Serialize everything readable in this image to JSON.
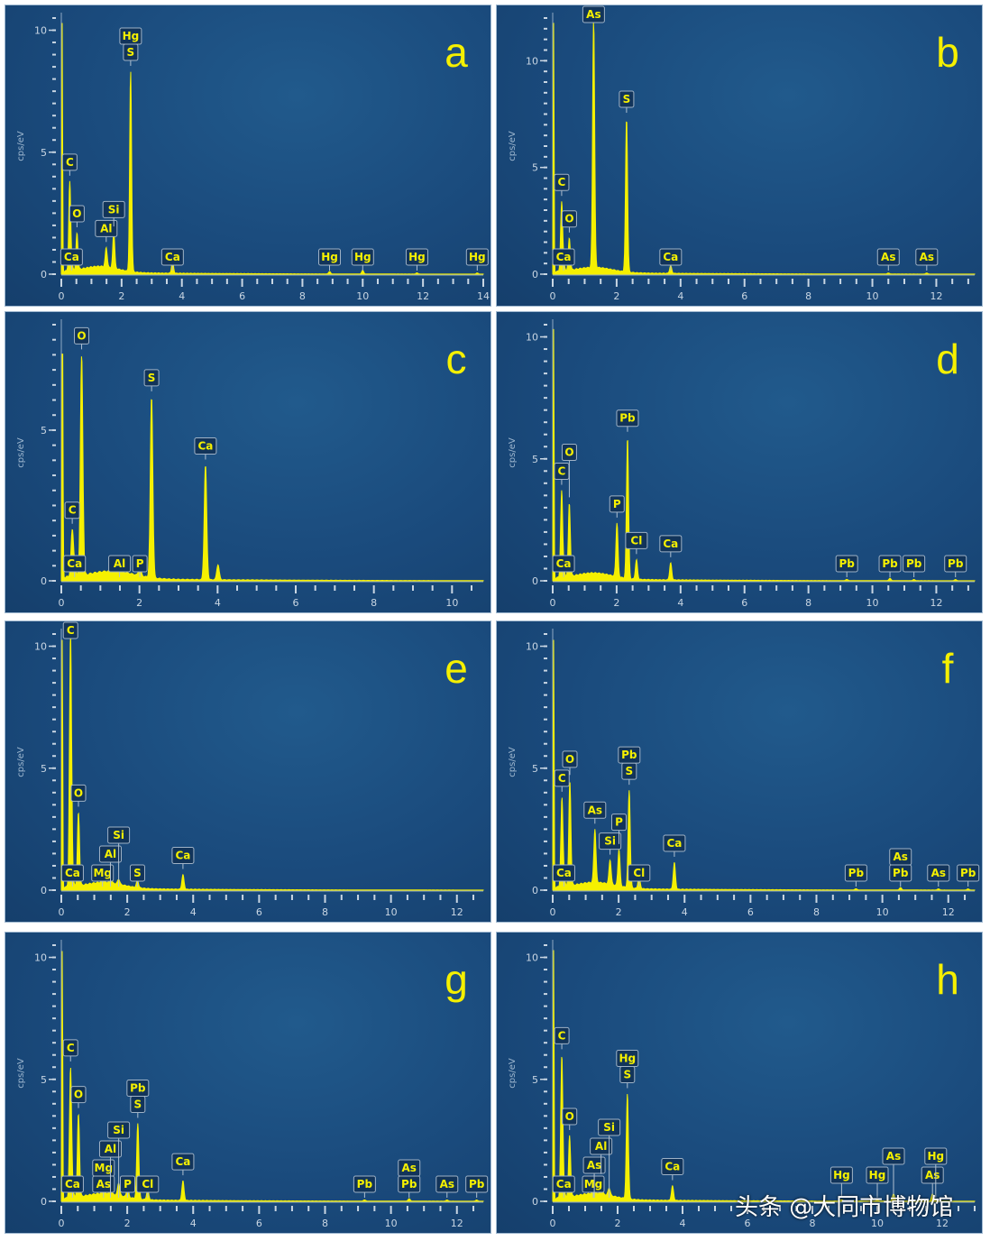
{
  "figure": {
    "watermark": "头条 @大同市博物馆"
  },
  "colors": {
    "spectrum": "#f5f000",
    "background": "#1b4b7d",
    "axis": "#c9d6e3",
    "label_text": "#f5f000"
  },
  "chart_data": [
    {
      "id": "a",
      "type": "area",
      "title": "a",
      "ylabel": "cps/eV",
      "xlabel": "",
      "xlim": [
        0,
        14
      ],
      "ylim": [
        0,
        10.5
      ],
      "xticks": [
        0,
        2,
        4,
        6,
        8,
        10,
        12,
        14
      ],
      "yticks": [
        0,
        5,
        10
      ],
      "peaks": [
        {
          "x": 0.28,
          "y": 3.6,
          "labels": [
            "C"
          ]
        },
        {
          "x": 0.52,
          "y": 1.5,
          "labels": [
            "O"
          ]
        },
        {
          "x": 0.34,
          "y": 0.3,
          "labels": [
            "Ca"
          ]
        },
        {
          "x": 1.49,
          "y": 0.8,
          "labels": [
            "Al"
          ]
        },
        {
          "x": 1.74,
          "y": 1.5,
          "labels": [
            "Si"
          ]
        },
        {
          "x": 2.3,
          "y": 8.2,
          "labels": [
            "Hg",
            "S"
          ]
        },
        {
          "x": 3.69,
          "y": 0.5,
          "labels": [
            "Ca"
          ]
        },
        {
          "x": 8.9,
          "y": 0.1,
          "labels": [
            "Hg"
          ]
        },
        {
          "x": 10.0,
          "y": 0.15,
          "labels": [
            "Hg"
          ]
        },
        {
          "x": 11.8,
          "y": 0.05,
          "labels": [
            "Hg"
          ]
        },
        {
          "x": 13.8,
          "y": 0.05,
          "labels": [
            "Hg"
          ]
        }
      ]
    },
    {
      "id": "b",
      "type": "area",
      "title": "b",
      "ylabel": "cps/eV",
      "xlabel": "",
      "xlim": [
        0,
        13.2
      ],
      "ylim": [
        0,
        12
      ],
      "xticks": [
        0,
        2,
        4,
        6,
        8,
        10,
        12
      ],
      "yticks": [
        0,
        5,
        10
      ],
      "peaks": [
        {
          "x": 0.28,
          "y": 3.2,
          "labels": [
            "C"
          ]
        },
        {
          "x": 0.52,
          "y": 1.5,
          "labels": [
            "O"
          ]
        },
        {
          "x": 0.34,
          "y": 0.3,
          "labels": [
            "Ca"
          ]
        },
        {
          "x": 1.28,
          "y": 11.6,
          "labels": [
            "As"
          ]
        },
        {
          "x": 2.31,
          "y": 7.2,
          "labels": [
            "S"
          ]
        },
        {
          "x": 3.69,
          "y": 0.35,
          "labels": [
            "Ca"
          ]
        },
        {
          "x": 10.5,
          "y": 0.05,
          "labels": [
            "As"
          ]
        },
        {
          "x": 11.7,
          "y": 0.05,
          "labels": [
            "As"
          ]
        }
      ]
    },
    {
      "id": "c",
      "type": "area",
      "title": "c",
      "ylabel": "cps/eV",
      "xlabel": "",
      "xlim": [
        0,
        10.8
      ],
      "ylim": [
        0,
        8.5
      ],
      "xticks": [
        0,
        2,
        4,
        6,
        8,
        10
      ],
      "yticks": [
        0,
        5
      ],
      "peaks": [
        {
          "x": 0.28,
          "y": 1.5,
          "labels": [
            "C"
          ]
        },
        {
          "x": 0.34,
          "y": 0.3,
          "labels": [
            "Ca"
          ]
        },
        {
          "x": 0.52,
          "y": 7.3,
          "labels": [
            "O"
          ]
        },
        {
          "x": 1.49,
          "y": 0.3,
          "labels": [
            "Al"
          ]
        },
        {
          "x": 2.01,
          "y": 0.3,
          "labels": [
            "P"
          ]
        },
        {
          "x": 2.31,
          "y": 6.0,
          "labels": [
            "S"
          ]
        },
        {
          "x": 3.69,
          "y": 3.8,
          "labels": [
            "Ca"
          ]
        },
        {
          "x": 4.01,
          "y": 0.5,
          "labels": []
        }
      ]
    },
    {
      "id": "d",
      "type": "area",
      "title": "d",
      "ylabel": "cps/eV",
      "xlabel": "",
      "xlim": [
        0,
        13.2
      ],
      "ylim": [
        0,
        10.5
      ],
      "xticks": [
        0,
        2,
        4,
        6,
        8,
        10,
        12
      ],
      "yticks": [
        0,
        5,
        10
      ],
      "peaks": [
        {
          "x": 0.28,
          "y": 3.5,
          "labels": [
            "C"
          ]
        },
        {
          "x": 0.34,
          "y": 0.3,
          "labels": [
            "Ca"
          ]
        },
        {
          "x": 0.52,
          "y": 3.0,
          "labels": [
            "O"
          ]
        },
        {
          "x": 2.01,
          "y": 2.2,
          "labels": [
            "P"
          ]
        },
        {
          "x": 2.34,
          "y": 5.8,
          "labels": [
            "Pb"
          ]
        },
        {
          "x": 2.62,
          "y": 0.8,
          "labels": [
            "Cl"
          ]
        },
        {
          "x": 3.69,
          "y": 0.7,
          "labels": [
            "Ca"
          ]
        },
        {
          "x": 9.2,
          "y": 0.05,
          "labels": [
            "Pb"
          ]
        },
        {
          "x": 10.55,
          "y": 0.1,
          "labels": [
            "Pb"
          ]
        },
        {
          "x": 11.3,
          "y": 0.05,
          "labels": [
            "Pb"
          ]
        },
        {
          "x": 12.6,
          "y": 0.05,
          "labels": [
            "Pb"
          ]
        }
      ]
    },
    {
      "id": "e",
      "type": "area",
      "title": "e",
      "ylabel": "cps/eV",
      "xlabel": "",
      "xlim": [
        0,
        12.8
      ],
      "ylim": [
        0,
        10.5
      ],
      "xticks": [
        0,
        2,
        4,
        6,
        8,
        10,
        12
      ],
      "yticks": [
        0,
        5,
        10
      ],
      "peaks": [
        {
          "x": 0.28,
          "y": 10.4,
          "labels": [
            "C"
          ]
        },
        {
          "x": 0.34,
          "y": 0.3,
          "labels": [
            "Ca"
          ]
        },
        {
          "x": 0.52,
          "y": 3.0,
          "labels": [
            "O"
          ]
        },
        {
          "x": 1.25,
          "y": 0.2,
          "labels": [
            "Mg"
          ]
        },
        {
          "x": 1.49,
          "y": 0.3,
          "labels": [
            "Al"
          ]
        },
        {
          "x": 1.74,
          "y": 0.2,
          "labels": [
            "Si"
          ]
        },
        {
          "x": 2.31,
          "y": 0.3,
          "labels": [
            "S"
          ]
        },
        {
          "x": 3.69,
          "y": 0.6,
          "labels": [
            "Ca"
          ]
        }
      ]
    },
    {
      "id": "f",
      "type": "area",
      "title": "f",
      "ylabel": "cps/eV",
      "xlabel": "",
      "xlim": [
        0,
        12.8
      ],
      "ylim": [
        0,
        10.5
      ],
      "xticks": [
        0,
        2,
        4,
        6,
        8,
        10,
        12
      ],
      "yticks": [
        0,
        5,
        10
      ],
      "peaks": [
        {
          "x": 0.28,
          "y": 3.6,
          "labels": [
            "C"
          ]
        },
        {
          "x": 0.34,
          "y": 0.3,
          "labels": [
            "Ca"
          ]
        },
        {
          "x": 0.52,
          "y": 4.3,
          "labels": [
            "O"
          ]
        },
        {
          "x": 1.28,
          "y": 2.2,
          "labels": [
            "As"
          ]
        },
        {
          "x": 1.74,
          "y": 1.0,
          "labels": [
            "Si"
          ]
        },
        {
          "x": 2.01,
          "y": 1.5,
          "labels": [
            "P"
          ]
        },
        {
          "x": 2.32,
          "y": 4.0,
          "labels": [
            "Pb",
            "S"
          ]
        },
        {
          "x": 2.62,
          "y": 0.5,
          "labels": [
            "Cl"
          ]
        },
        {
          "x": 3.69,
          "y": 1.1,
          "labels": [
            "Ca"
          ]
        },
        {
          "x": 9.2,
          "y": 0.05,
          "labels": [
            "Pb"
          ]
        },
        {
          "x": 10.55,
          "y": 0.1,
          "labels": [
            "As",
            "Pb"
          ]
        },
        {
          "x": 11.7,
          "y": 0.05,
          "labels": [
            "As"
          ]
        },
        {
          "x": 12.6,
          "y": 0.05,
          "labels": [
            "Pb"
          ]
        }
      ]
    },
    {
      "id": "g",
      "type": "area",
      "title": "g",
      "ylabel": "cps/eV",
      "xlabel": "",
      "xlim": [
        0,
        12.8
      ],
      "ylim": [
        0,
        10.5
      ],
      "xticks": [
        0,
        2,
        4,
        6,
        8,
        10,
        12
      ],
      "yticks": [
        0,
        5,
        10
      ],
      "peaks": [
        {
          "x": 0.28,
          "y": 5.3,
          "labels": [
            "C"
          ]
        },
        {
          "x": 0.34,
          "y": 0.3,
          "labels": [
            "Ca"
          ]
        },
        {
          "x": 0.52,
          "y": 3.4,
          "labels": [
            "O"
          ]
        },
        {
          "x": 1.28,
          "y": 0.5,
          "labels": [
            "Mg",
            "As"
          ]
        },
        {
          "x": 1.49,
          "y": 0.4,
          "labels": [
            "Al"
          ]
        },
        {
          "x": 1.74,
          "y": 0.5,
          "labels": [
            "Si"
          ]
        },
        {
          "x": 2.01,
          "y": 0.4,
          "labels": [
            "P"
          ]
        },
        {
          "x": 2.32,
          "y": 3.1,
          "labels": [
            "Pb",
            "S"
          ]
        },
        {
          "x": 2.62,
          "y": 0.4,
          "labels": [
            "Cl"
          ]
        },
        {
          "x": 3.69,
          "y": 0.8,
          "labels": [
            "Ca"
          ]
        },
        {
          "x": 9.2,
          "y": 0.05,
          "labels": [
            "Pb"
          ]
        },
        {
          "x": 10.55,
          "y": 0.1,
          "labels": [
            "As",
            "Pb"
          ]
        },
        {
          "x": 11.7,
          "y": 0.05,
          "labels": [
            "As"
          ]
        },
        {
          "x": 12.6,
          "y": 0.05,
          "labels": [
            "Pb"
          ]
        }
      ]
    },
    {
      "id": "h",
      "type": "area",
      "title": "h",
      "ylabel": "cps/eV",
      "xlabel": "",
      "xlim": [
        0,
        13
      ],
      "ylim": [
        0,
        10.5
      ],
      "xticks": [
        0,
        2,
        4,
        6,
        8,
        10,
        12
      ],
      "yticks": [
        0,
        5,
        10
      ],
      "peaks": [
        {
          "x": 0.28,
          "y": 5.8,
          "labels": [
            "C"
          ]
        },
        {
          "x": 0.34,
          "y": 0.3,
          "labels": [
            "Ca"
          ]
        },
        {
          "x": 0.52,
          "y": 2.5,
          "labels": [
            "O"
          ]
        },
        {
          "x": 1.25,
          "y": 0.3,
          "labels": [
            "Mg"
          ]
        },
        {
          "x": 1.28,
          "y": 0.5,
          "labels": [
            "As"
          ]
        },
        {
          "x": 1.49,
          "y": 0.6,
          "labels": [
            "Al"
          ]
        },
        {
          "x": 1.74,
          "y": 0.3,
          "labels": [
            "Si"
          ]
        },
        {
          "x": 2.3,
          "y": 4.3,
          "labels": [
            "Hg",
            "S"
          ]
        },
        {
          "x": 3.69,
          "y": 0.6,
          "labels": [
            "Ca"
          ]
        },
        {
          "x": 8.9,
          "y": 0.05,
          "labels": [
            "Hg"
          ]
        },
        {
          "x": 10.0,
          "y": 0.05,
          "labels": [
            "Hg"
          ]
        },
        {
          "x": 10.5,
          "y": 0.3,
          "labels": [
            "As"
          ]
        },
        {
          "x": 11.7,
          "y": 0.3,
          "labels": [
            "As"
          ]
        },
        {
          "x": 11.8,
          "y": 0.05,
          "labels": [
            "Hg"
          ]
        }
      ]
    }
  ]
}
